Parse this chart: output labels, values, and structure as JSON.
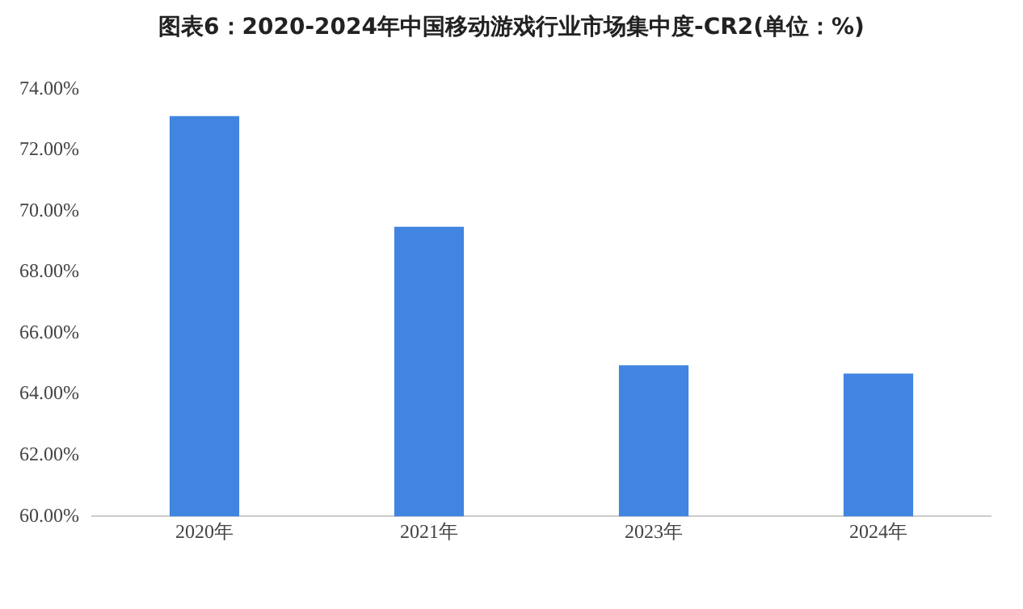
{
  "chart_data": {
    "type": "bar",
    "title": "图表6：2020-2024年中国移动游戏行业市场集中度-CR2(单位：%)",
    "categories": [
      "2020年",
      "2021年",
      "2023年",
      "2024年"
    ],
    "values": [
      73.12,
      69.49,
      64.95,
      64.68
    ],
    "color": "#4285e0",
    "ylim": [
      60,
      74
    ],
    "yticks": [
      {
        "value": 60,
        "label": "60.00%"
      },
      {
        "value": 62,
        "label": "62.00%"
      },
      {
        "value": 64,
        "label": "64.00%"
      },
      {
        "value": 66,
        "label": "66.00%"
      },
      {
        "value": 68,
        "label": "68.00%"
      },
      {
        "value": 70,
        "label": "70.00%"
      },
      {
        "value": 72,
        "label": "72.00%"
      },
      {
        "value": 74,
        "label": "74.00%"
      }
    ],
    "grid": false,
    "legend": false
  }
}
